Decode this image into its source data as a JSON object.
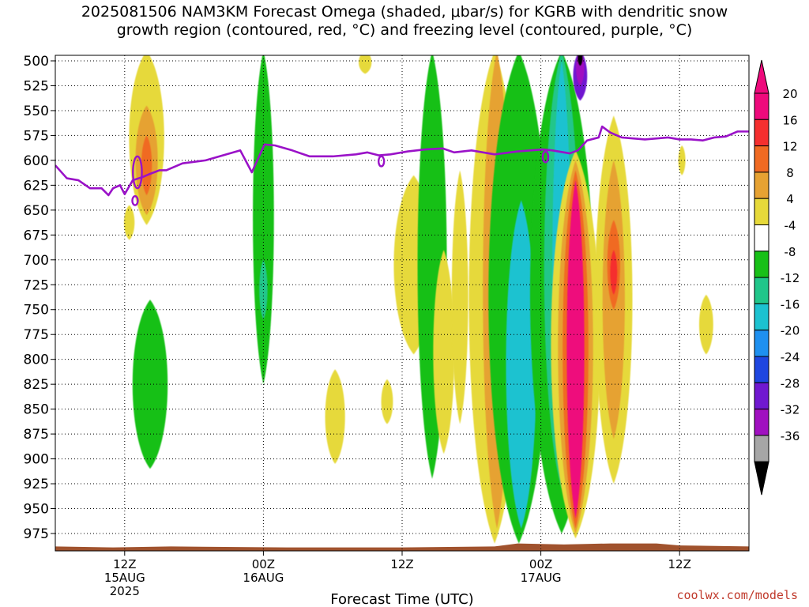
{
  "title_line1": "2025081506 NAM3KM Forecast Omega (shaded, μbar/s) for KGRB with dendritic snow",
  "title_line2": "growth region (contoured, red, °C) and freezing level (contoured, purple, °C)",
  "credit": "coolwx.com/models",
  "chart_data": {
    "type": "heatmap",
    "title": "2025081506 NAM3KM Forecast Omega (shaded, μbar/s) for KGRB with dendritic snow growth region (contoured, red, °C) and freezing level (contoured, purple, °C)",
    "xlabel": "Forecast Time (UTC)",
    "ylabel": "",
    "x_unit": "hours since 2025-08-15 06Z",
    "xlim": [
      0,
      60
    ],
    "ylim": [
      990,
      495
    ],
    "y_axis": "pressure (hPa), inverted",
    "x_ticks": [
      {
        "x": 6,
        "label": "12Z",
        "sub": "15AUG",
        "sub2": "2025"
      },
      {
        "x": 18,
        "label": "00Z",
        "sub": "16AUG",
        "sub2": ""
      },
      {
        "x": 30,
        "label": "12Z",
        "sub": "",
        "sub2": ""
      },
      {
        "x": 42,
        "label": "00Z",
        "sub": "17AUG",
        "sub2": ""
      },
      {
        "x": 54,
        "label": "12Z",
        "sub": "",
        "sub2": ""
      }
    ],
    "y_ticks": [
      500,
      525,
      550,
      575,
      600,
      625,
      650,
      675,
      700,
      725,
      750,
      775,
      800,
      825,
      850,
      875,
      900,
      925,
      950,
      975
    ],
    "grid": true,
    "colorbar": {
      "labels": [
        "20",
        "16",
        "12",
        "8",
        "4",
        "-4",
        "-8",
        "-12",
        "-16",
        "-20",
        "-24",
        "-28",
        "-32",
        "-36"
      ],
      "colors": [
        "#ee0a7c",
        "#f52f2f",
        "#f06a22",
        "#e6a232",
        "#e6d93a",
        "#ffffff",
        "#18c018",
        "#20c68a",
        "#1cc2d0",
        "#1e90f0",
        "#1e46e0",
        "#7018d0",
        "#a010c0",
        "#a6a6a6"
      ],
      "top_arrow_color": "#ee0a7c",
      "bottom_arrow_color": "#000000"
    },
    "omega_features": [
      {
        "x": 6.4,
        "p0": 645,
        "p1": 680,
        "w": 0.45,
        "v": 5
      },
      {
        "x": 7.9,
        "p0": 490,
        "p1": 665,
        "w": 1.5,
        "v": 5
      },
      {
        "x": 7.9,
        "p0": 545,
        "p1": 655,
        "w": 0.95,
        "v": 9
      },
      {
        "x": 7.9,
        "p0": 575,
        "p1": 635,
        "w": 0.45,
        "v": 13
      },
      {
        "x": 8.2,
        "p0": 740,
        "p1": 910,
        "w": 1.5,
        "v": -6
      },
      {
        "x": 18.0,
        "p0": 490,
        "p1": 825,
        "w": 0.9,
        "v": -6
      },
      {
        "x": 18.0,
        "p0": 700,
        "p1": 760,
        "w": 0.35,
        "v": -10
      },
      {
        "x": 26.8,
        "p0": 490,
        "p1": 513,
        "w": 0.55,
        "v": 5
      },
      {
        "x": 24.2,
        "p0": 810,
        "p1": 905,
        "w": 0.85,
        "v": 5
      },
      {
        "x": 28.7,
        "p0": 820,
        "p1": 865,
        "w": 0.5,
        "v": 5
      },
      {
        "x": 31.0,
        "p0": 615,
        "p1": 795,
        "w": 1.7,
        "v": 5
      },
      {
        "x": 32.6,
        "p0": 490,
        "p1": 920,
        "w": 1.25,
        "v": -6
      },
      {
        "x": 33.6,
        "p0": 690,
        "p1": 895,
        "w": 0.9,
        "v": 5
      },
      {
        "x": 35.0,
        "p0": 610,
        "p1": 865,
        "w": 0.7,
        "v": 5
      },
      {
        "x": 38.0,
        "p0": 490,
        "p1": 985,
        "w": 2.2,
        "v": 5
      },
      {
        "x": 38.2,
        "p0": 490,
        "p1": 970,
        "w": 1.2,
        "v": 9
      },
      {
        "x": 39.0,
        "p0": 790,
        "p1": 920,
        "w": 0.7,
        "v": 13
      },
      {
        "x": 39.0,
        "p0": 830,
        "p1": 905,
        "w": 0.35,
        "v": 17
      },
      {
        "x": 40.1,
        "p0": 490,
        "p1": 985,
        "w": 2.6,
        "v": -6
      },
      {
        "x": 40.3,
        "p0": 640,
        "p1": 970,
        "w": 1.3,
        "v": -13
      },
      {
        "x": 43.8,
        "p0": 490,
        "p1": 975,
        "w": 2.7,
        "v": -6
      },
      {
        "x": 43.8,
        "p0": 490,
        "p1": 930,
        "w": 1.5,
        "v": -10
      },
      {
        "x": 43.8,
        "p0": 500,
        "p1": 925,
        "w": 0.8,
        "v": -14
      },
      {
        "x": 44.8,
        "p0": 740,
        "p1": 870,
        "w": 0.45,
        "v": -18
      },
      {
        "x": 45.4,
        "p0": 490,
        "p1": 540,
        "w": 0.6,
        "v": -26
      },
      {
        "x": 45.4,
        "p0": 490,
        "p1": 525,
        "w": 0.35,
        "v": -30
      },
      {
        "x": 45.4,
        "p0": 490,
        "p1": 505,
        "w": 0.2,
        "v": -38
      },
      {
        "x": 45.0,
        "p0": 590,
        "p1": 980,
        "w": 2.1,
        "v": 5
      },
      {
        "x": 45.0,
        "p0": 600,
        "p1": 975,
        "w": 1.5,
        "v": 9
      },
      {
        "x": 45.0,
        "p0": 610,
        "p1": 970,
        "w": 1.1,
        "v": 13
      },
      {
        "x": 45.0,
        "p0": 620,
        "p1": 960,
        "w": 0.75,
        "v": 21
      },
      {
        "x": 48.3,
        "p0": 555,
        "p1": 925,
        "w": 1.6,
        "v": 5
      },
      {
        "x": 48.3,
        "p0": 600,
        "p1": 880,
        "w": 0.95,
        "v": 9
      },
      {
        "x": 48.3,
        "p0": 660,
        "p1": 750,
        "w": 0.55,
        "v": 13
      },
      {
        "x": 48.3,
        "p0": 690,
        "p1": 735,
        "w": 0.3,
        "v": 17
      },
      {
        "x": 54.2,
        "p0": 585,
        "p1": 615,
        "w": 0.3,
        "v": 5
      },
      {
        "x": 56.3,
        "p0": 735,
        "p1": 795,
        "w": 0.6,
        "v": 5
      }
    ],
    "freezing_level": {
      "name": "freezing level (0 °C)",
      "x": [
        0,
        1,
        2,
        3,
        4,
        4.6,
        5,
        5.6,
        6.0,
        6.4,
        6.7,
        7.5,
        8.1,
        9.0,
        9.6,
        11,
        13,
        16,
        17,
        18.1,
        19,
        20.5,
        22,
        24,
        26,
        27,
        28,
        29,
        30.5,
        32,
        33.5,
        34.5,
        36,
        37,
        38,
        40,
        42.2,
        43,
        44.5,
        45.2,
        46,
        47,
        47.3,
        48,
        49,
        51,
        53,
        54,
        55,
        56,
        57,
        58,
        59,
        60
      ],
      "p": [
        605,
        618,
        620,
        628,
        628,
        635,
        628,
        625,
        634,
        626,
        620,
        617,
        614,
        610,
        610,
        603,
        600,
        590,
        612,
        584,
        585,
        590,
        596,
        596,
        594,
        592,
        595,
        594,
        591,
        589,
        588,
        592,
        590,
        592,
        594,
        591,
        589,
        590,
        593,
        590,
        580,
        577,
        566,
        572,
        577,
        579,
        577,
        579,
        579,
        580,
        577,
        576,
        571,
        571
      ]
    },
    "freezing_level_loops": [
      {
        "x": 7.1,
        "p0": 596,
        "p1": 628
      },
      {
        "x": 6.9,
        "p0": 636,
        "p1": 645
      },
      {
        "x": 28.2,
        "p0": 596,
        "p1": 606
      },
      {
        "x": 42.4,
        "p0": 591,
        "p1": 602
      }
    ],
    "terrain": {
      "x": [
        0,
        5,
        10,
        20,
        30,
        38,
        40,
        44,
        48,
        52,
        54,
        60
      ],
      "p": [
        988,
        989,
        988,
        989,
        989,
        988,
        985,
        986,
        985,
        985,
        987,
        988
      ]
    }
  }
}
